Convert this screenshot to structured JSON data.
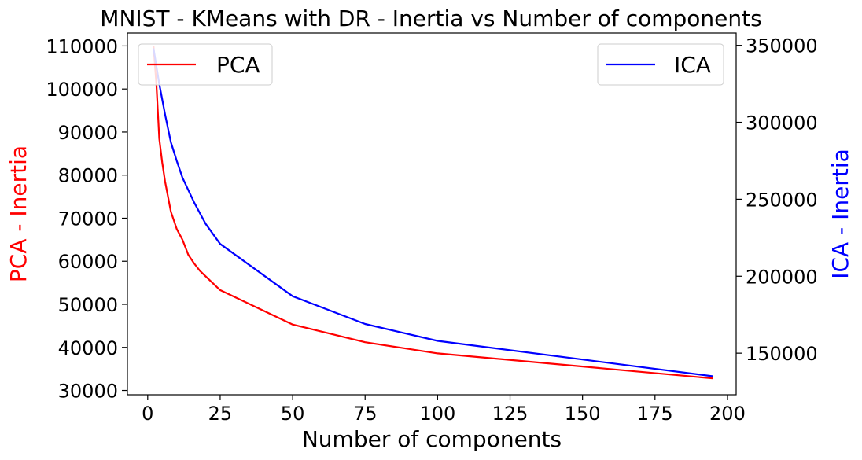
{
  "chart_data": {
    "type": "line",
    "title": "MNIST - KMeans with DR - Inertia vs Number of components",
    "xlabel": "Number of components",
    "ylabel_left": "PCA - Inertia",
    "ylabel_right": "ICA - Inertia",
    "xlim": [
      -7,
      203
    ],
    "ylim_left": [
      29000,
      113000
    ],
    "ylim_right": [
      123000,
      358000
    ],
    "x_ticks": [
      0,
      25,
      50,
      75,
      100,
      125,
      150,
      175,
      200
    ],
    "y_ticks_left": [
      30000,
      40000,
      50000,
      60000,
      70000,
      80000,
      90000,
      100000,
      110000
    ],
    "y_ticks_right": [
      150000,
      200000,
      250000,
      300000,
      350000
    ],
    "grid": false,
    "series": [
      {
        "name": "PCA",
        "axis": "left",
        "color": "#ff0000",
        "legend_position": "upper-left",
        "x": [
          2,
          3,
          4,
          5,
          6,
          7,
          8,
          9,
          10,
          12,
          14,
          16,
          18,
          20,
          25,
          50,
          75,
          100,
          195
        ],
        "y": [
          110000,
          101000,
          88500,
          83000,
          78500,
          75000,
          71500,
          69500,
          67500,
          65000,
          61500,
          59500,
          57800,
          56500,
          53300,
          45300,
          41200,
          38600,
          32800
        ]
      },
      {
        "name": "ICA",
        "axis": "right",
        "color": "#0000ff",
        "legend_position": "upper-right",
        "x": [
          2,
          4,
          6,
          8,
          10,
          12,
          14,
          16,
          18,
          20,
          25,
          50,
          75,
          100,
          195
        ],
        "y": [
          348000,
          325000,
          305000,
          287000,
          275000,
          264000,
          256000,
          248000,
          241000,
          234000,
          221000,
          187000,
          169000,
          158000,
          135000
        ]
      }
    ]
  }
}
